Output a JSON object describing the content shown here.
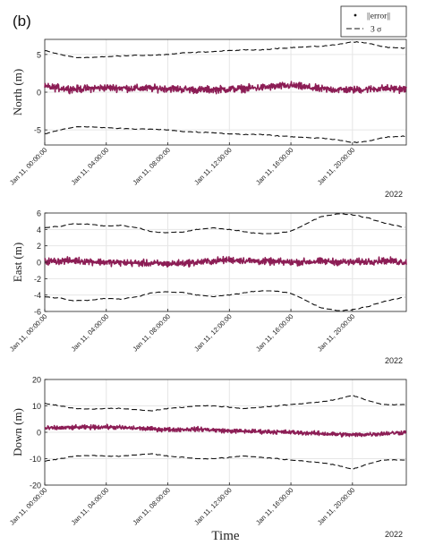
{
  "figure": {
    "panel_label": "(b)",
    "xlabel": "Time",
    "legend": {
      "items": [
        {
          "label": "||error||",
          "style": "dot"
        },
        {
          "label": "3 σ",
          "style": "dashed"
        }
      ],
      "placement": "top-right"
    },
    "colors": {
      "error": "#8c1d55",
      "sigma": "#111111",
      "grid": "#e6e6e6",
      "axis": "#222222"
    }
  },
  "chart_data": [
    {
      "type": "line",
      "name": "north",
      "ylabel": "North (m)",
      "ylim": [
        -7,
        7
      ],
      "yticks": [
        -5,
        0,
        5
      ],
      "year_label": "2022",
      "x_tick_labels": [
        "Jan 11, 00:00:00",
        "Jan 11, 04:00:00",
        "Jan 11, 08:00:00",
        "Jan 11, 12:00:00",
        "Jan 11, 16:00:00",
        "Jan 11, 20:00:00"
      ],
      "x_tick_hours": [
        0,
        4,
        8,
        12,
        16,
        20
      ],
      "xlim_hours": [
        0,
        23.5
      ],
      "error_amplitude": 0.7,
      "series": [
        {
          "name": "3 σ",
          "x_hours": [
            0,
            1,
            2,
            3,
            4,
            5,
            6,
            7,
            8,
            9,
            10,
            11,
            12,
            13,
            14,
            15,
            16,
            17,
            18,
            19,
            20,
            21,
            22,
            23.5
          ],
          "values": [
            5.5,
            5.0,
            4.6,
            4.6,
            4.7,
            4.8,
            4.9,
            4.9,
            5.0,
            5.2,
            5.3,
            5.4,
            5.5,
            5.6,
            5.6,
            5.8,
            5.9,
            6.0,
            6.1,
            6.3,
            6.7,
            6.5,
            6.0,
            5.8
          ]
        },
        {
          "name": "||error||",
          "x_hours": [
            0,
            2,
            4,
            6,
            8,
            10,
            12,
            14,
            16,
            18,
            20,
            22,
            23.5
          ],
          "values": [
            0.7,
            0.4,
            0.6,
            0.5,
            0.5,
            0.3,
            0.4,
            0.6,
            0.9,
            0.4,
            0.3,
            0.5,
            0.4
          ]
        }
      ]
    },
    {
      "type": "line",
      "name": "east",
      "ylabel": "East (m)",
      "ylim": [
        -6,
        6
      ],
      "yticks": [
        -6,
        -4,
        -2,
        0,
        2,
        4,
        6
      ],
      "year_label": "2022",
      "x_tick_labels": [
        "Jan 11, 00:00:00",
        "Jan 11, 04:00:00",
        "Jan 11, 08:00:00",
        "Jan 11, 12:00:00",
        "Jan 11, 16:00:00",
        "Jan 11, 20:00:00"
      ],
      "x_tick_hours": [
        0,
        4,
        8,
        12,
        16,
        20
      ],
      "xlim_hours": [
        0,
        23.5
      ],
      "error_amplitude": 0.6,
      "series": [
        {
          "name": "3 σ",
          "x_hours": [
            0,
            1,
            2,
            3,
            4,
            5,
            6,
            7,
            8,
            9,
            10,
            11,
            12,
            13,
            14,
            15,
            16,
            17,
            18,
            19,
            20,
            21,
            22,
            23.5
          ],
          "values": [
            4.2,
            4.4,
            4.7,
            4.6,
            4.4,
            4.5,
            4.2,
            3.7,
            3.6,
            3.7,
            4.0,
            4.2,
            4.0,
            3.7,
            3.5,
            3.5,
            3.8,
            4.7,
            5.6,
            5.9,
            5.8,
            5.4,
            4.8,
            4.2
          ]
        },
        {
          "name": "||error||",
          "x_hours": [
            0,
            2,
            4,
            6,
            8,
            10,
            12,
            14,
            16,
            18,
            20,
            22,
            23.5
          ],
          "values": [
            0.1,
            0.2,
            0.0,
            -0.1,
            -0.2,
            0.0,
            0.3,
            0.1,
            0.0,
            0.1,
            0.0,
            0.2,
            0.0
          ]
        }
      ]
    },
    {
      "type": "line",
      "name": "down",
      "ylabel": "Down (m)",
      "ylim": [
        -20,
        20
      ],
      "yticks": [
        -20,
        -10,
        0,
        10,
        20
      ],
      "year_label": "2022",
      "x_tick_labels": [
        "Jan 11, 00:00:00",
        "Jan 11, 04:00:00",
        "Jan 11, 08:00:00",
        "Jan 11, 12:00:00",
        "Jan 11, 16:00:00",
        "Jan 11, 20:00:00"
      ],
      "x_tick_hours": [
        0,
        4,
        8,
        12,
        16,
        20
      ],
      "xlim_hours": [
        0,
        23.5
      ],
      "error_amplitude": 1.2,
      "series": [
        {
          "name": "3 σ",
          "x_hours": [
            0,
            1,
            2,
            3,
            4,
            5,
            6,
            7,
            8,
            9,
            10,
            11,
            12,
            13,
            14,
            15,
            16,
            17,
            18,
            19,
            20,
            21,
            22,
            23.5
          ],
          "values": [
            11,
            10.0,
            9.0,
            8.8,
            9.0,
            9.0,
            8.5,
            8.2,
            9.0,
            9.5,
            10.0,
            10.0,
            9.5,
            9.0,
            9.5,
            10.0,
            10.5,
            11.0,
            11.5,
            12.5,
            14.0,
            12.0,
            10.5,
            10.5
          ]
        },
        {
          "name": "||error||",
          "x_hours": [
            0,
            2,
            4,
            6,
            8,
            10,
            12,
            14,
            16,
            18,
            20,
            22,
            23.5
          ],
          "values": [
            1.5,
            1.8,
            2.0,
            1.5,
            1.0,
            1.2,
            0.5,
            0.3,
            0.0,
            -0.5,
            -1.0,
            -0.5,
            0.0
          ]
        }
      ]
    }
  ]
}
